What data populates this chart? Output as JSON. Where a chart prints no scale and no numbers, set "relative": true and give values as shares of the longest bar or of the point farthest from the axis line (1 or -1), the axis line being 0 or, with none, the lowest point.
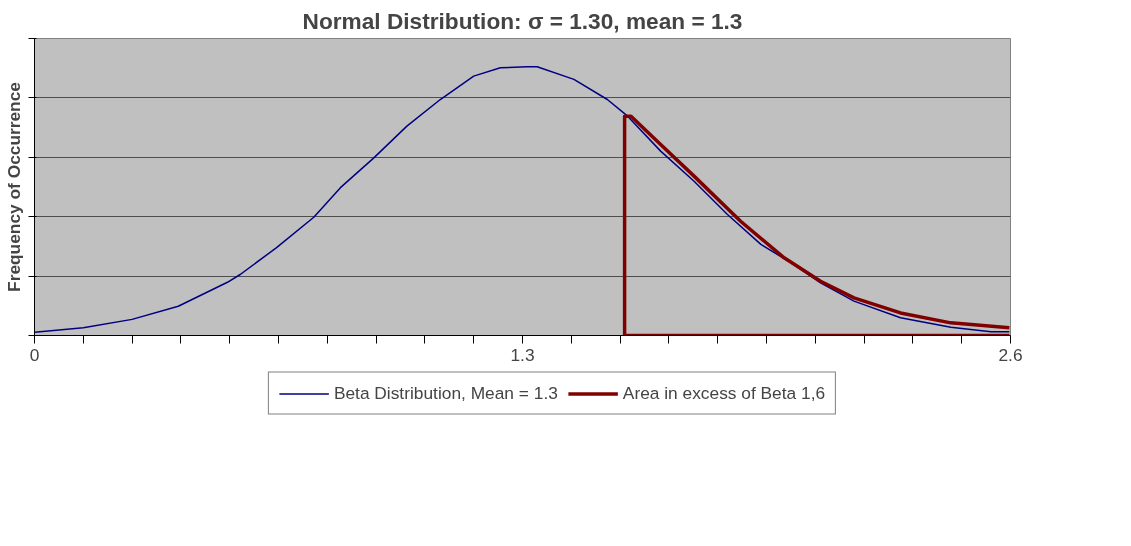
{
  "chart_data": {
    "type": "line",
    "title": "Normal Distribution: σ = 1.30, mean = 1.3",
    "ylabel": "Frequency of Occurrence",
    "relative": true,
    "xlim": [
      0,
      2.6
    ],
    "xticks": [
      0,
      {
        "value": 0.13,
        "label": null
      },
      {
        "value": 0.26,
        "label": null
      },
      {
        "value": 0.39,
        "label": null
      },
      {
        "value": 0.52,
        "label": null
      },
      {
        "value": 0.65,
        "label": null
      },
      {
        "value": 0.78,
        "label": null
      },
      {
        "value": 0.91,
        "label": null
      },
      {
        "value": 1.04,
        "label": null
      },
      {
        "value": 1.17,
        "label": null
      },
      1.3,
      {
        "value": 1.43,
        "label": null
      },
      {
        "value": 1.56,
        "label": null
      },
      {
        "value": 1.69,
        "label": null
      },
      {
        "value": 1.82,
        "label": null
      },
      {
        "value": 1.95,
        "label": null
      },
      {
        "value": 2.08,
        "label": null
      },
      {
        "value": 2.21,
        "label": null
      },
      {
        "value": 2.34,
        "label": null
      },
      {
        "value": 2.47,
        "label": null
      },
      2.6
    ],
    "grid": "y",
    "legend": "bottom",
    "marker": "none",
    "line_style": "solid",
    "series": [
      {
        "name": "Beta Distribution, Mean = 1.3",
        "color": "#000080",
        "x": [
          0,
          0.13,
          0.26,
          0.383,
          0.514,
          0.548,
          0.644,
          0.744,
          0.815,
          0.904,
          0.992,
          1.081,
          1.17,
          1.241,
          1.312,
          1.339,
          1.437,
          1.526,
          1.58,
          1.668,
          1.757,
          1.846,
          1.935,
          2.023,
          2.094,
          2.183,
          2.307,
          2.441,
          2.548,
          2.597
        ],
        "values": [
          0.012,
          0.029,
          0.06,
          0.109,
          0.198,
          0.227,
          0.326,
          0.44,
          0.55,
          0.661,
          0.779,
          0.878,
          0.965,
          0.996,
          1.0,
          1.0,
          0.953,
          0.878,
          0.816,
          0.686,
          0.574,
          0.45,
          0.339,
          0.264,
          0.196,
          0.128,
          0.066,
          0.031,
          0.014,
          0.014
        ]
      },
      {
        "name": "Area in excess of Beta 1,6",
        "color": "#800000",
        "x": [
          2.597,
          1.572,
          1.572,
          1.589,
          1.668,
          1.757,
          1.881,
          1.997,
          2.094,
          2.183,
          2.307,
          2.441,
          2.597
        ],
        "values": [
          0,
          0,
          0.816,
          0.816,
          0.711,
          0.593,
          0.425,
          0.289,
          0.202,
          0.14,
          0.084,
          0.047,
          0.029
        ]
      }
    ]
  }
}
